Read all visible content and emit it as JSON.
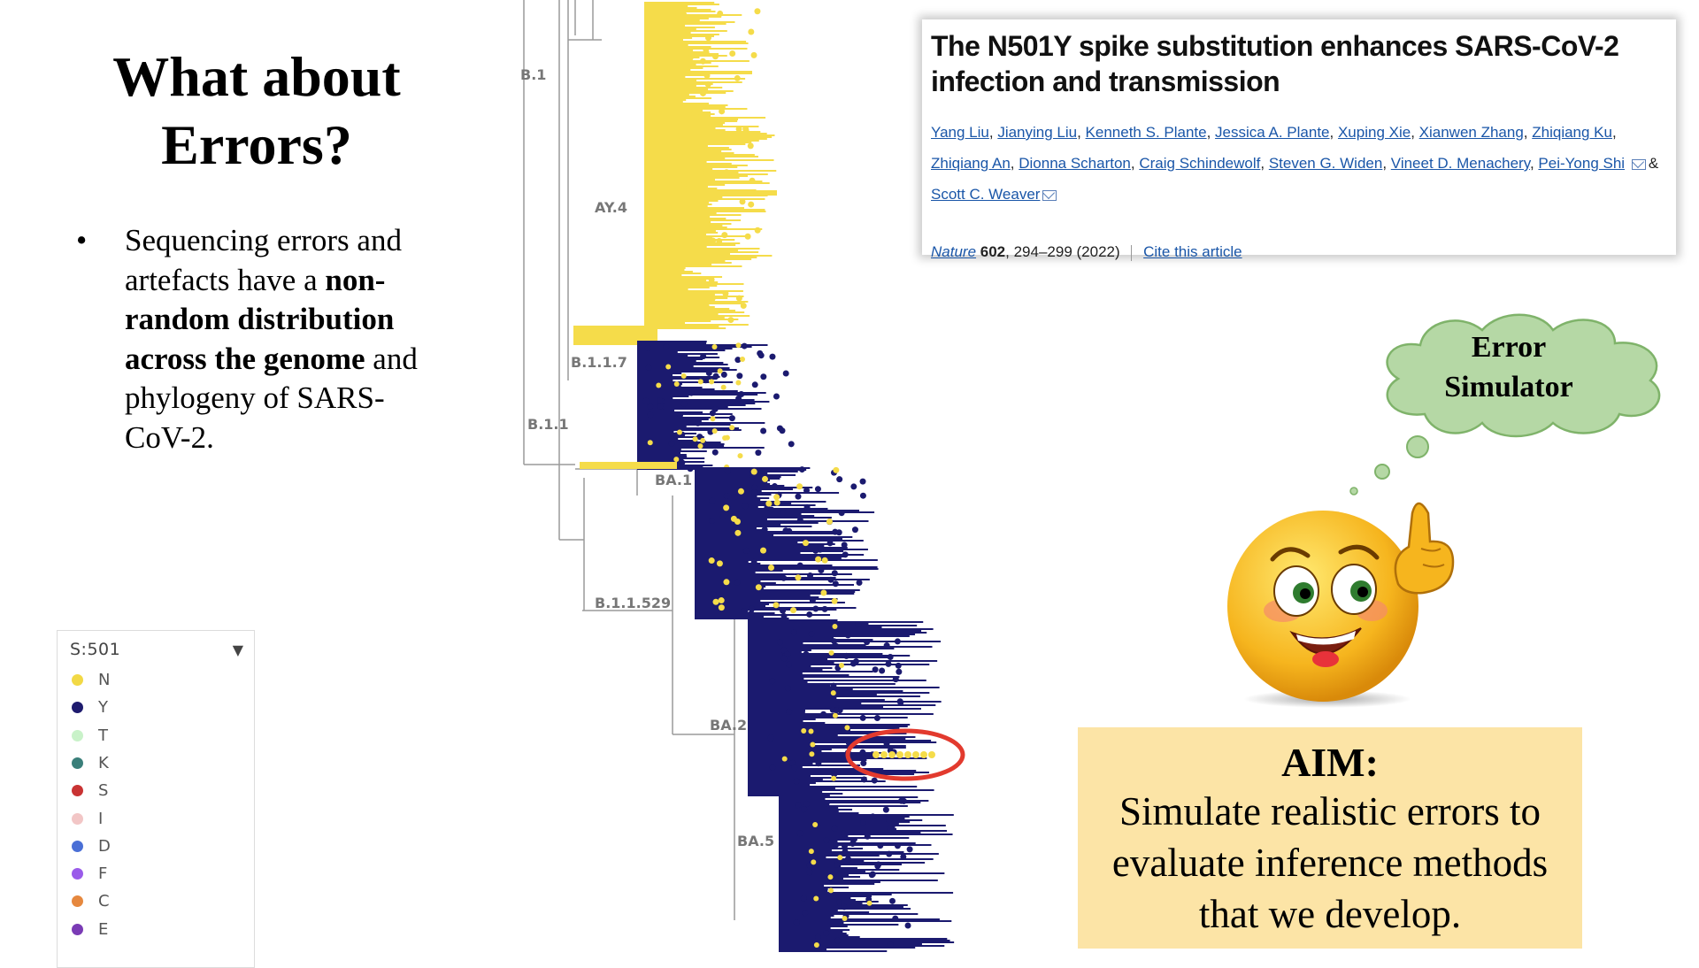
{
  "title": {
    "line1": "What about",
    "line2": "Errors?"
  },
  "bullet": {
    "dot": "•",
    "t1": "Sequencing errors and artefacts have a ",
    "b1": "non-random distribution across the genome",
    "t2": " and phylogeny of SARS-CoV-2."
  },
  "tree": {
    "labels": [
      "B.1",
      "AY.4",
      "B.1.1.7",
      "B.1.1",
      "BA.1",
      "B.1.1.529",
      "BA.2",
      "BA.5"
    ],
    "colors": {
      "N": "#f5dc4a",
      "Y": "#1b1a6f",
      "highlight": "#e23a2e"
    }
  },
  "legend": {
    "title": "S:501",
    "caret": "▼",
    "items": [
      {
        "label": "N",
        "color": "#f2d945"
      },
      {
        "label": "Y",
        "color": "#1e1b6e"
      },
      {
        "label": "T",
        "color": "#c9f2c9"
      },
      {
        "label": "K",
        "color": "#3a7f7a"
      },
      {
        "label": "S",
        "color": "#c93333"
      },
      {
        "label": "I",
        "color": "#f2c6c6"
      },
      {
        "label": "D",
        "color": "#4a6fd6"
      },
      {
        "label": "F",
        "color": "#9a5bea"
      },
      {
        "label": "C",
        "color": "#e6883e"
      },
      {
        "label": "E",
        "color": "#7a3bb5"
      }
    ]
  },
  "paper": {
    "title": "The N501Y spike substitution enhances SARS-CoV-2 infection and transmission",
    "authors": [
      "Yang Liu",
      "Jianying Liu",
      "Kenneth S. Plante",
      "Jessica A. Plante",
      "Xuping Xie",
      "Xianwen Zhang",
      "Zhiqiang Ku",
      "Zhiqiang An",
      "Dionna Scharton",
      "Craig Schindewolf",
      "Steven G. Widen",
      "Vineet D. Menachery",
      "Pei-Yong Shi"
    ],
    "amp": "&",
    "last_author": "Scott C. Weaver",
    "journal": "Nature",
    "volume": "602",
    "pages": ", 294–299 (2022)",
    "cite": "Cite this article"
  },
  "cloud": {
    "line1": "Error",
    "line2": "Simulator"
  },
  "aim": {
    "title": "AIM:",
    "text": "Simulate realistic errors to evaluate inference methods that we develop."
  }
}
